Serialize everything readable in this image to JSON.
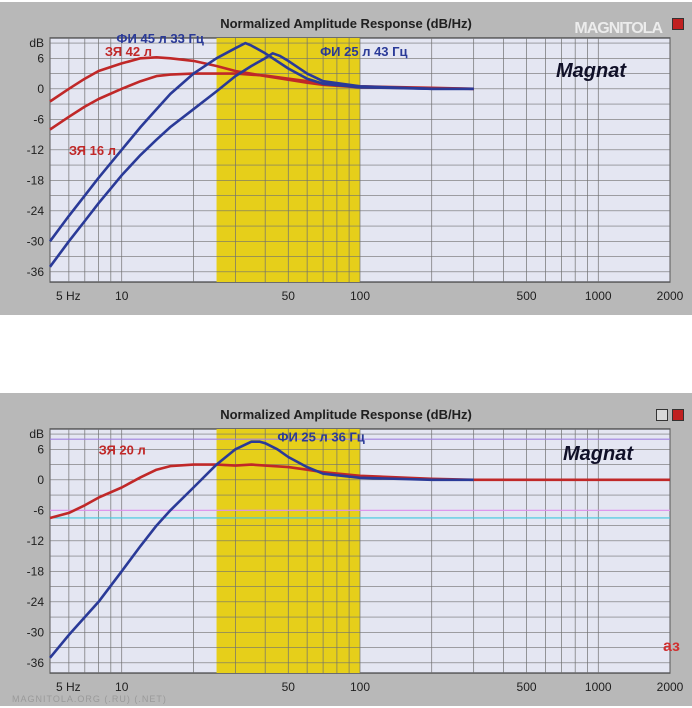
{
  "chart_data": [
    {
      "type": "line",
      "title": "Normalized Amplitude Response (dB/Hz)",
      "brand": "Magnat",
      "watermark": "MAGNITOLA",
      "x_scale": "log",
      "xlim": [
        5,
        2000
      ],
      "ylim": [
        -38,
        10
      ],
      "x_ticks": [
        5,
        10,
        50,
        100,
        500,
        1000,
        2000
      ],
      "x_tick_labels": [
        "5 Hz",
        "10",
        "50",
        "100",
        "500",
        "1000",
        "2000"
      ],
      "y_ticks": [
        9,
        6,
        0,
        -6,
        -12,
        -18,
        -24,
        -30,
        -36
      ],
      "y_tick_labels": [
        "dB",
        "6",
        "0",
        "-6",
        "-12",
        "-18",
        "-24",
        "-30",
        "-36"
      ],
      "highlight_band": {
        "x_range": [
          25,
          100
        ],
        "color": "#e6cf1a"
      },
      "grid": true,
      "series": [
        {
          "name": "ЗЯ 42 л",
          "color": "#c02828",
          "label_at": [
            8.5,
            6.5
          ],
          "x": [
            5,
            6,
            7,
            8,
            10,
            12,
            14,
            16,
            20,
            25,
            30,
            40,
            50,
            60,
            70,
            100,
            200,
            300
          ],
          "y": [
            -2.5,
            0,
            2,
            3.5,
            5,
            6,
            6.2,
            6,
            5.5,
            4.5,
            3.5,
            2.5,
            1.8,
            1.2,
            0.8,
            0.3,
            0.1,
            0
          ]
        },
        {
          "name": "ЗЯ 16 л",
          "color": "#c02828",
          "label_at": [
            6,
            -13
          ],
          "x": [
            5,
            6,
            7,
            8,
            10,
            12,
            14,
            16,
            20,
            25,
            30,
            40,
            50,
            60,
            70,
            100,
            200,
            300
          ],
          "y": [
            -8,
            -5.5,
            -3.5,
            -2,
            0,
            1.5,
            2.5,
            2.8,
            3,
            3,
            3,
            2.6,
            2,
            1.5,
            1,
            0.5,
            0.2,
            0
          ]
        },
        {
          "name": "ФИ 45 л 33 Гц",
          "color": "#2a3a98",
          "label_at": [
            9.5,
            9
          ],
          "x": [
            5,
            6,
            7,
            8,
            10,
            12,
            14,
            16,
            20,
            25,
            30,
            33,
            35,
            40,
            50,
            60,
            70,
            100,
            200,
            300
          ],
          "y": [
            -30,
            -25,
            -21,
            -17.5,
            -12,
            -7.5,
            -4,
            -1,
            3,
            6,
            8,
            9,
            8.5,
            7,
            4,
            2,
            1,
            0.3,
            0,
            0
          ]
        },
        {
          "name": "ФИ 25 л 43 Гц",
          "color": "#2a3a98",
          "label_at": [
            68,
            6.5
          ],
          "x": [
            5,
            6,
            7,
            8,
            10,
            12,
            14,
            16,
            20,
            25,
            30,
            35,
            40,
            43,
            46,
            50,
            60,
            70,
            100,
            200,
            300
          ],
          "y": [
            -35,
            -30,
            -26,
            -22.5,
            -17,
            -13,
            -10,
            -7.5,
            -4,
            -0.5,
            2.5,
            4.5,
            6,
            7,
            6.5,
            5.5,
            3,
            1.5,
            0.5,
            0,
            0
          ]
        }
      ]
    },
    {
      "type": "line",
      "title": "Normalized Amplitude Response (dB/Hz)",
      "brand": "Magnat",
      "corner_mark": "аз",
      "footer": "MAGNITOLA.ORG (.RU) (.NET)",
      "x_scale": "log",
      "xlim": [
        5,
        2000
      ],
      "ylim": [
        -38,
        10
      ],
      "x_ticks": [
        5,
        10,
        50,
        100,
        500,
        1000,
        2000
      ],
      "x_tick_labels": [
        "5 Hz",
        "10",
        "50",
        "100",
        "500",
        "1000",
        "2000"
      ],
      "y_ticks": [
        9,
        6,
        0,
        -6,
        -12,
        -18,
        -24,
        -30,
        -36
      ],
      "y_tick_labels": [
        "dB",
        "6",
        "0",
        "-6",
        "-12",
        "-18",
        "-24",
        "-30",
        "-36"
      ],
      "highlight_band": {
        "x_range": [
          25,
          100
        ],
        "color": "#e6cf1a"
      },
      "reference_lines": [
        {
          "y": 8,
          "color": "#a080e0"
        },
        {
          "y": -6,
          "color": "#e090f0"
        },
        {
          "y": -7.5,
          "color": "#40c8e0"
        }
      ],
      "grid": true,
      "series": [
        {
          "name": "ЗЯ 20 л",
          "color": "#c02828",
          "label_at": [
            8,
            5
          ],
          "x": [
            5,
            6,
            7,
            8,
            10,
            12,
            14,
            16,
            20,
            25,
            30,
            35,
            40,
            50,
            60,
            70,
            100,
            200,
            300,
            500,
            2000
          ],
          "y": [
            -7.5,
            -6.5,
            -5,
            -3.5,
            -1.5,
            0.5,
            2,
            2.7,
            3,
            3,
            2.8,
            3,
            2.8,
            2.5,
            2,
            1.5,
            0.8,
            0.2,
            0,
            0,
            0
          ]
        },
        {
          "name": "ФИ 25 л 36 Гц",
          "color": "#2a3a98",
          "label_at": [
            45,
            7.5
          ],
          "x": [
            5,
            6,
            7,
            8,
            10,
            12,
            14,
            16,
            20,
            25,
            30,
            35,
            38,
            40,
            45,
            50,
            60,
            70,
            100,
            200,
            300
          ],
          "y": [
            -35,
            -30.5,
            -27,
            -24,
            -18,
            -13,
            -9,
            -6,
            -1.5,
            3,
            6,
            7.5,
            7.5,
            7.2,
            6,
            4.5,
            2.5,
            1.2,
            0.4,
            0,
            0
          ]
        }
      ]
    }
  ]
}
